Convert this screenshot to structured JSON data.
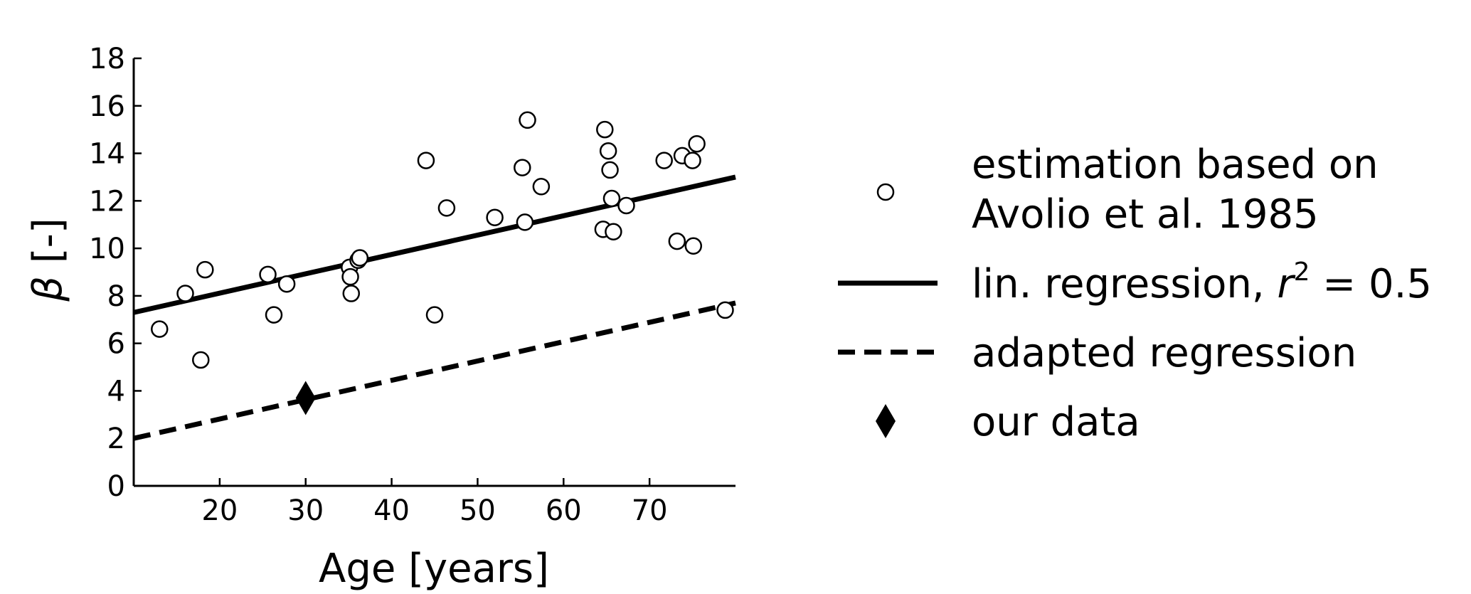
{
  "chart_data": {
    "type": "scatter",
    "xlabel": "Age [years]",
    "ylabel_symbol": "β",
    "ylabel_unit": " [-]",
    "xlim": [
      10,
      80
    ],
    "ylim": [
      0,
      18
    ],
    "x_ticks": [
      20,
      30,
      40,
      50,
      60,
      70
    ],
    "y_ticks": [
      0,
      2,
      4,
      6,
      8,
      10,
      12,
      14,
      16,
      18
    ],
    "grid": false,
    "legend_placement": "right",
    "series": [
      {
        "name": "estimation based on Avolio et al. 1985",
        "name_lines": [
          "estimation based on",
          "Avolio et al. 1985"
        ],
        "kind": "scatter",
        "marker": "circle-open",
        "points": [
          [
            13,
            6.6
          ],
          [
            16,
            8.1
          ],
          [
            17.8,
            5.3
          ],
          [
            18.3,
            9.1
          ],
          [
            25.6,
            8.9
          ],
          [
            26.3,
            7.2
          ],
          [
            27.8,
            8.5
          ],
          [
            35.1,
            9.2
          ],
          [
            35.2,
            8.8
          ],
          [
            35.3,
            8.1
          ],
          [
            36.1,
            9.5
          ],
          [
            36.3,
            9.6
          ],
          [
            44,
            13.7
          ],
          [
            45,
            7.2
          ],
          [
            46.4,
            11.7
          ],
          [
            52,
            11.3
          ],
          [
            55.2,
            13.4
          ],
          [
            55.5,
            11.1
          ],
          [
            55.8,
            15.4
          ],
          [
            57.4,
            12.6
          ],
          [
            64.6,
            10.8
          ],
          [
            64.8,
            15
          ],
          [
            65.2,
            14.1
          ],
          [
            65.4,
            13.3
          ],
          [
            65.6,
            12.1
          ],
          [
            65.8,
            10.7
          ],
          [
            67.3,
            11.8
          ],
          [
            71.7,
            13.7
          ],
          [
            73.2,
            10.3
          ],
          [
            73.8,
            13.9
          ],
          [
            75,
            13.7
          ],
          [
            75.1,
            10.1
          ],
          [
            75.5,
            14.4
          ],
          [
            78.8,
            7.4
          ]
        ]
      },
      {
        "name": "lin. regression",
        "name_r": "r",
        "name_exp": "2",
        "name_value": " = 0.5",
        "kind": "line",
        "style": "solid",
        "points": [
          [
            10,
            7.3
          ],
          [
            80,
            13
          ]
        ]
      },
      {
        "name": "adapted regression",
        "kind": "line",
        "style": "dashed",
        "points": [
          [
            10,
            2
          ],
          [
            80,
            7.7
          ]
        ]
      },
      {
        "name": "our data",
        "kind": "scatter",
        "marker": "diamond-filled",
        "points": [
          [
            30,
            3.7
          ]
        ]
      }
    ]
  }
}
